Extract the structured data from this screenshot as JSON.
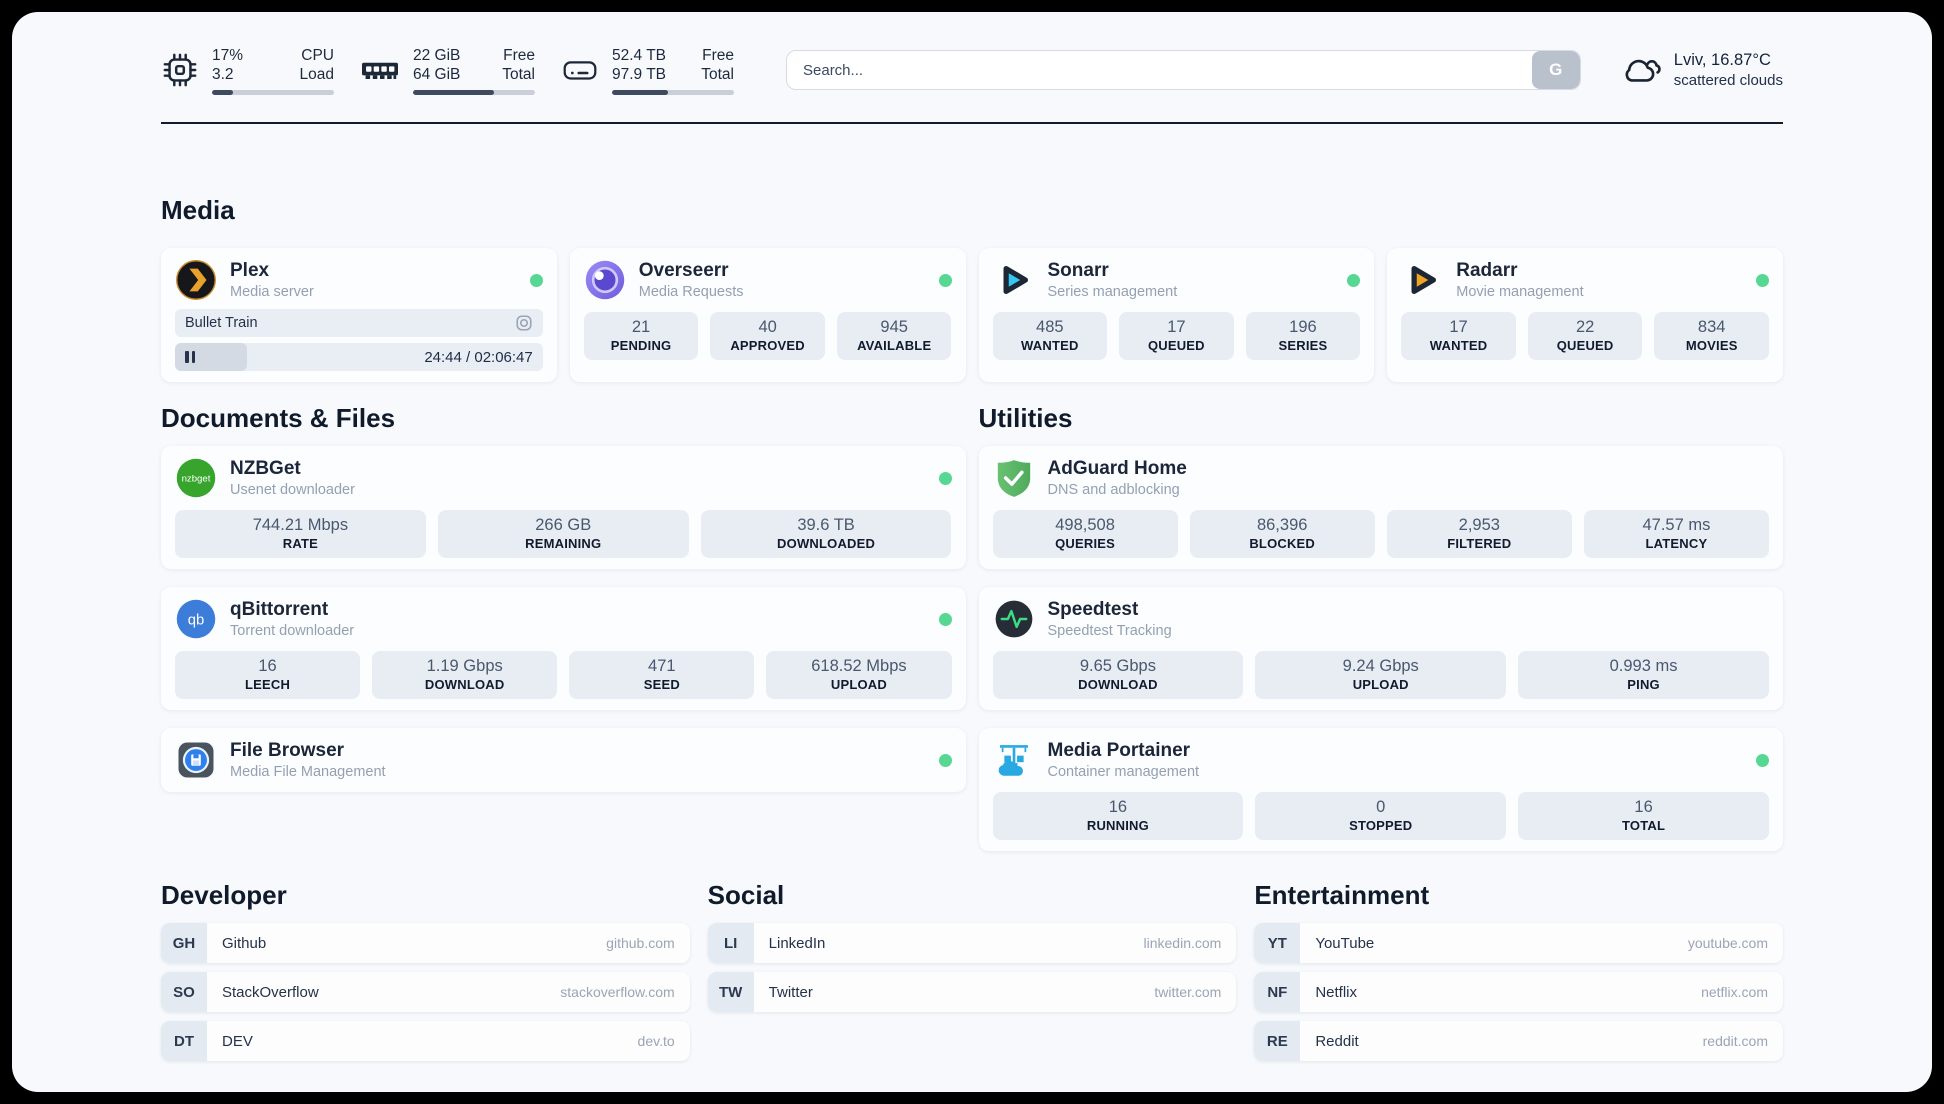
{
  "topbar": {
    "cpu": {
      "value_top": "17%",
      "value_bottom": "3.2",
      "label_top": "CPU",
      "label_bottom": "Load",
      "progress_pct": 17
    },
    "memory": {
      "value_top": "22 GiB",
      "value_bottom": "64 GiB",
      "label_top": "Free",
      "label_bottom": "Total",
      "progress_pct": 66
    },
    "disk": {
      "value_top": "52.4 TB",
      "value_bottom": "97.9 TB",
      "label_top": "Free",
      "label_bottom": "Total",
      "progress_pct": 46
    },
    "search": {
      "placeholder": "Search...",
      "button_label": "G"
    },
    "weather": {
      "location": "Lviv, 16.87°C",
      "condition": "scattered clouds"
    }
  },
  "media": {
    "title": "Media",
    "plex": {
      "name": "Plex",
      "desc": "Media server",
      "now_playing": "Bullet Train",
      "time": "24:44 / 02:06:47",
      "progress_pct": 19.5
    },
    "overseerr": {
      "name": "Overseerr",
      "desc": "Media Requests",
      "stats": [
        {
          "value": "21",
          "label": "PENDING"
        },
        {
          "value": "40",
          "label": "APPROVED"
        },
        {
          "value": "945",
          "label": "AVAILABLE"
        }
      ]
    },
    "sonarr": {
      "name": "Sonarr",
      "desc": "Series management",
      "stats": [
        {
          "value": "485",
          "label": "WANTED"
        },
        {
          "value": "17",
          "label": "QUEUED"
        },
        {
          "value": "196",
          "label": "SERIES"
        }
      ]
    },
    "radarr": {
      "name": "Radarr",
      "desc": "Movie management",
      "stats": [
        {
          "value": "17",
          "label": "WANTED"
        },
        {
          "value": "22",
          "label": "QUEUED"
        },
        {
          "value": "834",
          "label": "MOVIES"
        }
      ]
    }
  },
  "documents": {
    "title": "Documents & Files",
    "nzbget": {
      "name": "NZBGet",
      "desc": "Usenet downloader",
      "stats": [
        {
          "value": "744.21 Mbps",
          "label": "RATE"
        },
        {
          "value": "266 GB",
          "label": "REMAINING"
        },
        {
          "value": "39.6 TB",
          "label": "DOWNLOADED"
        }
      ]
    },
    "qbittorrent": {
      "name": "qBittorrent",
      "desc": "Torrent downloader",
      "stats": [
        {
          "value": "16",
          "label": "LEECH"
        },
        {
          "value": "1.19 Gbps",
          "label": "DOWNLOAD"
        },
        {
          "value": "471",
          "label": "SEED"
        },
        {
          "value": "618.52 Mbps",
          "label": "UPLOAD"
        }
      ]
    },
    "filebrowser": {
      "name": "File Browser",
      "desc": "Media File Management"
    }
  },
  "utilities": {
    "title": "Utilities",
    "adguard": {
      "name": "AdGuard Home",
      "desc": "DNS and adblocking",
      "stats": [
        {
          "value": "498,508",
          "label": "QUERIES"
        },
        {
          "value": "86,396",
          "label": "BLOCKED"
        },
        {
          "value": "2,953",
          "label": "FILTERED"
        },
        {
          "value": "47.57 ms",
          "label": "LATENCY"
        }
      ]
    },
    "speedtest": {
      "name": "Speedtest",
      "desc": "Speedtest Tracking",
      "stats": [
        {
          "value": "9.65 Gbps",
          "label": "DOWNLOAD"
        },
        {
          "value": "9.24 Gbps",
          "label": "UPLOAD"
        },
        {
          "value": "0.993 ms",
          "label": "PING"
        }
      ]
    },
    "portainer": {
      "name": "Media Portainer",
      "desc": "Container management",
      "stats": [
        {
          "value": "16",
          "label": "RUNNING"
        },
        {
          "value": "0",
          "label": "STOPPED"
        },
        {
          "value": "16",
          "label": "TOTAL"
        }
      ]
    }
  },
  "bookmarks": {
    "developer": {
      "title": "Developer",
      "items": [
        {
          "abbr": "GH",
          "name": "Github",
          "url": "github.com"
        },
        {
          "abbr": "SO",
          "name": "StackOverflow",
          "url": "stackoverflow.com"
        },
        {
          "abbr": "DT",
          "name": "DEV",
          "url": "dev.to"
        }
      ]
    },
    "social": {
      "title": "Social",
      "items": [
        {
          "abbr": "LI",
          "name": "LinkedIn",
          "url": "linkedin.com"
        },
        {
          "abbr": "TW",
          "name": "Twitter",
          "url": "twitter.com"
        }
      ]
    },
    "entertainment": {
      "title": "Entertainment",
      "items": [
        {
          "abbr": "YT",
          "name": "YouTube",
          "url": "youtube.com"
        },
        {
          "abbr": "NF",
          "name": "Netflix",
          "url": "netflix.com"
        },
        {
          "abbr": "RE",
          "name": "Reddit",
          "url": "reddit.com"
        }
      ]
    }
  },
  "colors": {
    "status_green": "#56d893",
    "plex_amber": "#e8a12b",
    "sonarr_cyan": "#36c6f4",
    "radarr_amber": "#f0a422",
    "adguard_green": "#5cb868",
    "portainer_blue": "#29a9e1"
  }
}
